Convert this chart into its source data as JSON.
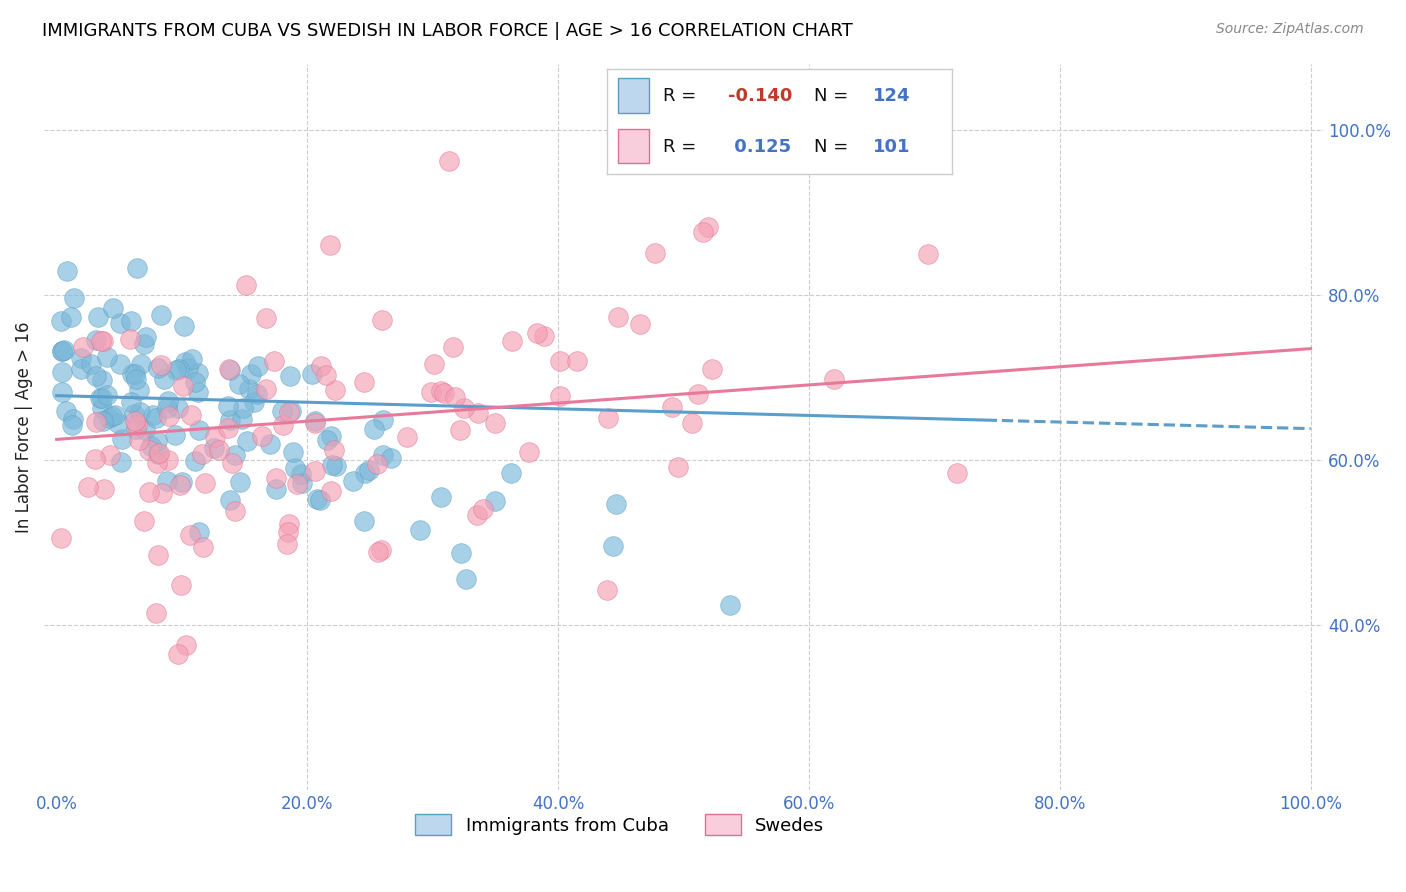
{
  "title": "IMMIGRANTS FROM CUBA VS SWEDISH IN LABOR FORCE | AGE > 16 CORRELATION CHART",
  "source": "Source: ZipAtlas.com",
  "ylabel": "In Labor Force | Age > 16",
  "x_tick_labels": [
    "0.0%",
    "20.0%",
    "40.0%",
    "60.0%",
    "80.0%",
    "100.0%"
  ],
  "x_tick_vals": [
    0.0,
    0.2,
    0.4,
    0.6,
    0.8,
    1.0
  ],
  "y_tick_labels_right": [
    "100.0%",
    "80.0%",
    "60.0%",
    "40.0%"
  ],
  "y_tick_vals_right": [
    1.0,
    0.8,
    0.6,
    0.4
  ],
  "xlim": [
    -0.01,
    1.01
  ],
  "ylim": [
    0.2,
    1.08
  ],
  "legend_label1": "Immigrants from Cuba",
  "legend_label2": "Swedes",
  "R1": -0.14,
  "N1": 124,
  "R2": 0.125,
  "N2": 101,
  "blue_color": "#7ab8d9",
  "blue_edge": "#5a9ec0",
  "pink_color": "#f4a0b5",
  "pink_edge": "#e07090",
  "blue_fill_legend": "#bdd7ee",
  "pink_fill_legend": "#f8cedc",
  "trend_blue": "#5b9ec9",
  "trend_pink": "#e8799a",
  "background_color": "#ffffff",
  "grid_color": "#cccccc",
  "title_color": "#000000",
  "source_color": "#888888",
  "label_color": "#4472c4",
  "R1_color": "#c0392b",
  "R2_color": "#4472c4",
  "N_color": "#4472c4"
}
